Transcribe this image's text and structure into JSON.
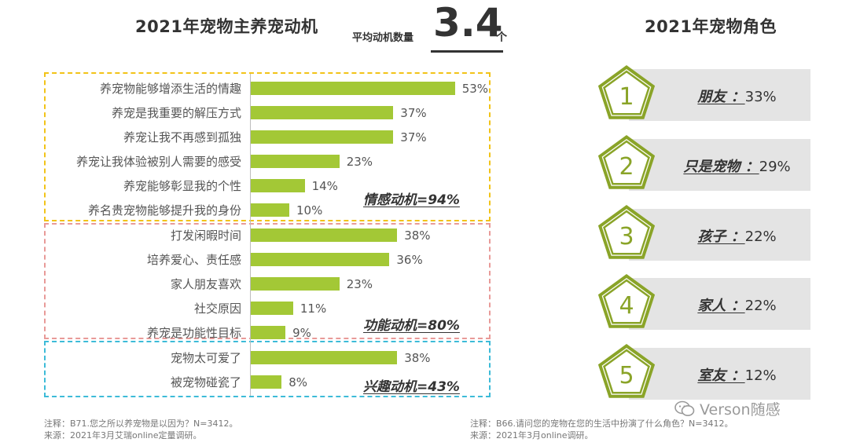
{
  "left_title": "2021年宠物主养宠动机",
  "right_title": "2021年宠物角色",
  "avg": {
    "label": "平均动机数量",
    "value": "3.4",
    "unit": "个"
  },
  "groups": [
    {
      "summary": "情感动机=94%",
      "color": "#f2c318"
    },
    {
      "summary": "功能动机=80%",
      "color": "#e89a98"
    },
    {
      "summary": "兴趣动机=43%",
      "color": "#3dbbd8"
    }
  ],
  "bar_color": "#a3c836",
  "chart_data": {
    "type": "bar",
    "orientation": "horizontal",
    "categories": [
      "养宠物能够增添生活的情趣",
      "养宠是我重要的解压方式",
      "养宠让我不再感到孤独",
      "养宠让我体验被别人需要的感受",
      "养宠能够彰显我的个性",
      "养名贵宠物能够提升我的身份",
      "打发闲暇时间",
      "培养爱心、责任感",
      "家人朋友喜欢",
      "社交原因",
      "养宠是功能性目标",
      "宠物太可爱了",
      "被宠物碰瓷了"
    ],
    "values": [
      53,
      37,
      37,
      23,
      14,
      10,
      38,
      36,
      23,
      11,
      9,
      38,
      8
    ],
    "value_labels": [
      "53%",
      "37%",
      "37%",
      "23%",
      "14%",
      "10%",
      "38%",
      "36%",
      "23%",
      "11%",
      "9%",
      "38%",
      "8%"
    ],
    "groups": [
      0,
      0,
      0,
      0,
      0,
      0,
      1,
      1,
      1,
      1,
      1,
      2,
      2
    ],
    "xlim": [
      0,
      60
    ],
    "grid": false
  },
  "roles": [
    {
      "num": "1",
      "name": "朋友",
      "sep": "：",
      "pct": "33%"
    },
    {
      "num": "2",
      "name": "只是宠物",
      "sep": "：",
      "pct": "29%"
    },
    {
      "num": "3",
      "name": "孩子",
      "sep": "：",
      "pct": "22%"
    },
    {
      "num": "4",
      "name": "家人",
      "sep": "：",
      "pct": "22%"
    },
    {
      "num": "5",
      "name": "室友",
      "sep": "：",
      "pct": "12%"
    }
  ],
  "role_color": "#8aa428",
  "notes": {
    "left_note": "注释：B71.您之所以养宠物是以因为？N=3412。",
    "left_source": "来源：2021年3月艾瑞online定量调研。",
    "right_note": "注释：B66.请问您的宠物在您的生活中扮演了什么角色？N=3412。",
    "right_source": "来源：2021年3月online调研。"
  },
  "watermark": "Verson随感",
  "watermark_icon": "wechat-icon"
}
